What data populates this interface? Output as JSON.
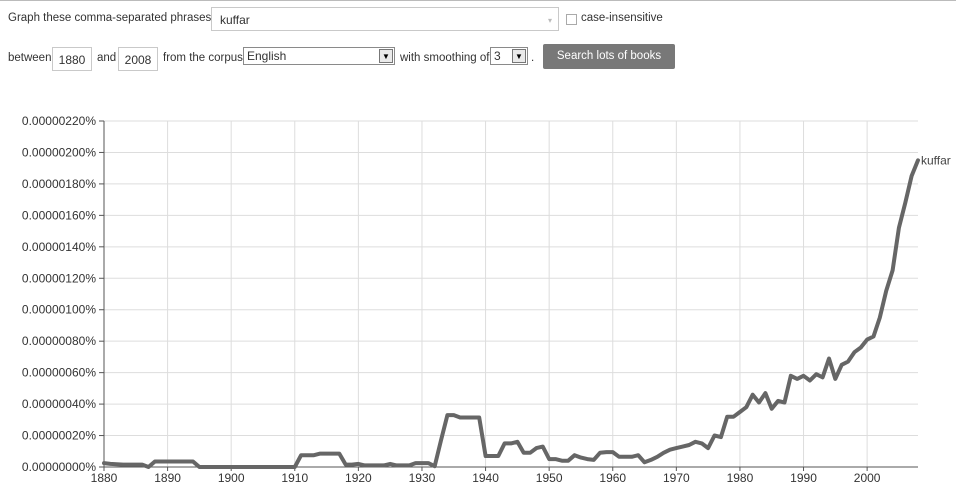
{
  "form": {
    "phrases_label": "Graph these comma-separated phrases:",
    "phrases_value": "kuffar",
    "case_label": "case-insensitive",
    "between_label": "between",
    "start_year": "1880",
    "and_label": "and",
    "end_year": "2008",
    "corpus_label": "from the corpus",
    "corpus_value": "English",
    "smoothing_label": "with smoothing of",
    "smoothing_value": "3",
    "period": ".",
    "search_button": "Search lots of books"
  },
  "chart_data": {
    "type": "line",
    "title": "",
    "xlabel": "",
    "ylabel": "",
    "xlim": [
      1880,
      2008
    ],
    "ylim": [
      0,
      2.2e-06
    ],
    "grid": true,
    "y_ticks": [
      "0.00000000%",
      "0.00000020%",
      "0.00000040%",
      "0.00000060%",
      "0.00000080%",
      "0.00000100%",
      "0.00000120%",
      "0.00000140%",
      "0.00000160%",
      "0.00000180%",
      "0.00000200%",
      "0.00000220%"
    ],
    "x_ticks": [
      "1880",
      "1890",
      "1900",
      "1910",
      "1920",
      "1930",
      "1940",
      "1950",
      "1960",
      "1970",
      "1980",
      "1990",
      "2000"
    ],
    "line_color": "#666666",
    "series": [
      {
        "name": "kuffar",
        "x": [
          1880,
          1881,
          1882,
          1883,
          1884,
          1885,
          1886,
          1887,
          1888,
          1889,
          1890,
          1891,
          1892,
          1893,
          1894,
          1895,
          1896,
          1897,
          1898,
          1899,
          1900,
          1901,
          1902,
          1903,
          1904,
          1905,
          1906,
          1907,
          1908,
          1909,
          1910,
          1911,
          1912,
          1913,
          1914,
          1915,
          1916,
          1917,
          1918,
          1919,
          1920,
          1921,
          1922,
          1923,
          1924,
          1925,
          1926,
          1927,
          1928,
          1929,
          1930,
          1931,
          1932,
          1933,
          1934,
          1935,
          1936,
          1937,
          1938,
          1939,
          1940,
          1941,
          1942,
          1943,
          1944,
          1945,
          1946,
          1947,
          1948,
          1949,
          1950,
          1951,
          1952,
          1953,
          1954,
          1955,
          1956,
          1957,
          1958,
          1959,
          1960,
          1961,
          1962,
          1963,
          1964,
          1965,
          1966,
          1967,
          1968,
          1969,
          1970,
          1971,
          1972,
          1973,
          1974,
          1975,
          1976,
          1977,
          1978,
          1979,
          1980,
          1981,
          1982,
          1983,
          1984,
          1985,
          1986,
          1987,
          1988,
          1989,
          1990,
          1991,
          1992,
          1993,
          1994,
          1995,
          1996,
          1997,
          1998,
          1999,
          2000,
          2001,
          2002,
          2003,
          2004,
          2005,
          2006,
          2007,
          2008
        ],
        "values": [
          2.5e-08,
          2e-08,
          1.8e-08,
          1.5e-08,
          1.5e-08,
          1.5e-08,
          1.5e-08,
          0.0,
          3.5e-08,
          3.5e-08,
          3.5e-08,
          3.5e-08,
          3.5e-08,
          3.5e-08,
          3.5e-08,
          0.0,
          0.0,
          0.0,
          0.0,
          0.0,
          0.0,
          0.0,
          0.0,
          0.0,
          0.0,
          0.0,
          0.0,
          0.0,
          0.0,
          0.0,
          0.0,
          7.5e-08,
          7.5e-08,
          7.5e-08,
          8.5e-08,
          8.5e-08,
          8.5e-08,
          8.5e-08,
          1.5e-08,
          1.5e-08,
          2e-08,
          1e-08,
          1e-08,
          1e-08,
          1e-08,
          2e-08,
          1e-08,
          1e-08,
          1e-08,
          2.5e-08,
          2.5e-08,
          2.5e-08,
          5e-09,
          1.7e-07,
          3.3e-07,
          3.3e-07,
          3.15e-07,
          3.15e-07,
          3.15e-07,
          3.15e-07,
          7e-08,
          7e-08,
          7e-08,
          1.5e-07,
          1.5e-07,
          1.6e-07,
          9e-08,
          9e-08,
          1.2e-07,
          1.3e-07,
          5e-08,
          5e-08,
          4e-08,
          4e-08,
          7.5e-08,
          6e-08,
          5e-08,
          4.5e-08,
          9e-08,
          9.5e-08,
          9.5e-08,
          6.5e-08,
          6.5e-08,
          6.5e-08,
          7.5e-08,
          3e-08,
          4.5e-08,
          6.5e-08,
          9e-08,
          1.1e-07,
          1.2e-07,
          1.3e-07,
          1.4e-07,
          1.6e-07,
          1.5e-07,
          1.2e-07,
          2e-07,
          1.9e-07,
          3.2e-07,
          3.2e-07,
          3.5e-07,
          3.8e-07,
          4.6e-07,
          4.1e-07,
          4.7e-07,
          3.7e-07,
          4.2e-07,
          4.1e-07,
          5.8e-07,
          5.6e-07,
          5.8e-07,
          5.5e-07,
          5.9e-07,
          5.7e-07,
          6.9e-07,
          5.6e-07,
          6.5e-07,
          6.7e-07,
          7.3e-07,
          7.6e-07,
          8.1e-07,
          8.3e-07,
          9.5e-07,
          1.12e-06,
          1.25e-06,
          1.52e-06,
          1.68e-06,
          1.85e-06,
          1.95e-06
        ]
      }
    ]
  }
}
